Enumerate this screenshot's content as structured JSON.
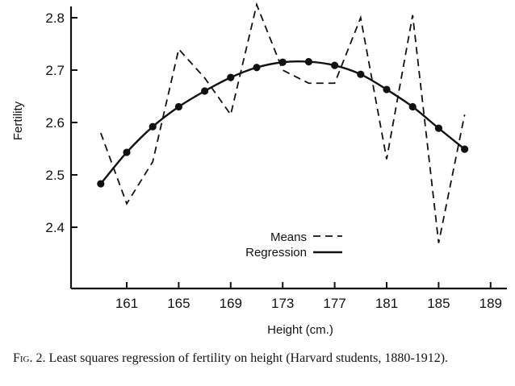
{
  "chart_data": {
    "type": "line",
    "title": "",
    "xlabel": "Height (cm.)",
    "ylabel": "Fertility",
    "xlim": [
      157,
      190
    ],
    "ylim": [
      2.3,
      2.83
    ],
    "xticks": [
      161,
      165,
      169,
      173,
      177,
      181,
      185,
      189
    ],
    "xtick_labels": [
      "161",
      "165",
      "169",
      "173",
      "177",
      "181",
      "185",
      "189"
    ],
    "yticks": [
      2.4,
      2.5,
      2.6,
      2.7,
      2.8
    ],
    "ytick_labels": [
      "2.4",
      "2.5",
      "2.6",
      "2.7",
      "2.8"
    ],
    "legend_position": "center",
    "series": [
      {
        "name": "Means",
        "style": "dashed",
        "x": [
          159,
          161,
          163,
          165,
          167,
          169,
          171,
          173,
          175,
          177,
          179,
          181,
          183,
          185,
          187
        ],
        "y": [
          2.58,
          2.445,
          2.525,
          2.74,
          2.685,
          2.615,
          2.825,
          2.7,
          2.675,
          2.675,
          2.8,
          2.53,
          2.805,
          2.37,
          2.615
        ]
      },
      {
        "name": "Regression",
        "style": "solid",
        "x": [
          159,
          161,
          163,
          165,
          167,
          169,
          171,
          173,
          175,
          177,
          179,
          181,
          183,
          185,
          187
        ],
        "y": [
          2.483,
          2.543,
          2.592,
          2.63,
          2.66,
          2.686,
          2.705,
          2.715,
          2.716,
          2.709,
          2.692,
          2.663,
          2.63,
          2.589,
          2.549
        ]
      }
    ],
    "grid": false,
    "color": "#111111"
  },
  "caption": {
    "lead": "Fig. 2.",
    "text": "Least squares regression of fertility on height (Harvard students, 1880-1912)."
  }
}
